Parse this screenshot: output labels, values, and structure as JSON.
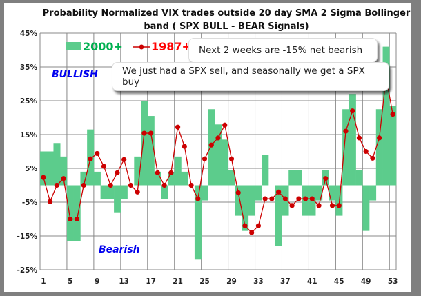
{
  "chart_data": {
    "type": "bar",
    "title": "Probability Normalized VIX trades outside 20 day SMA 2 Sigma Bollinger band ( SPX BULL - BEAR Signals)",
    "title_lines": [
      "Probability Normalized VIX trades outside 20 day SMA 2 Sigma Bollinger",
      "band ( SPX BULL - BEAR Signals)"
    ],
    "xlabel": "",
    "ylabel": "",
    "ylim": [
      -25,
      45
    ],
    "y_ticks": [
      "45%",
      "35%",
      "25%",
      "15%",
      "5%",
      "-5%",
      "-15%",
      "-25%"
    ],
    "y_tick_values": [
      45,
      35,
      25,
      15,
      5,
      -5,
      -15,
      -25
    ],
    "x_ticks": [
      "1",
      "5",
      "9",
      "13",
      "17",
      "21",
      "25",
      "29",
      "33",
      "37",
      "41",
      "45",
      "49",
      "53"
    ],
    "x": [
      1,
      2,
      3,
      4,
      5,
      6,
      7,
      8,
      9,
      10,
      11,
      12,
      13,
      14,
      15,
      16,
      17,
      18,
      19,
      20,
      21,
      22,
      23,
      24,
      25,
      26,
      27,
      28,
      29,
      30,
      31,
      32,
      33,
      34,
      35,
      36,
      37,
      38,
      39,
      40,
      41,
      42,
      43,
      44,
      45,
      46,
      47,
      48,
      49,
      50,
      51,
      52,
      53
    ],
    "grid": true,
    "legend_position": "top-left",
    "series": [
      {
        "name": "2000+",
        "type": "bar",
        "color": "#5ccc8c",
        "values": [
          10,
          10,
          12.5,
          8.5,
          -16.5,
          -16.5,
          4,
          16.5,
          4,
          -4,
          -4,
          -8,
          -4,
          0,
          8.5,
          25,
          20.5,
          4,
          -4,
          4,
          8.5,
          4,
          0,
          -22,
          -4.5,
          22.5,
          18,
          13.5,
          4.5,
          -9,
          -13.5,
          -9,
          -4.5,
          9,
          0,
          -18,
          -9,
          4.5,
          4.5,
          -9,
          -9,
          -4.5,
          4.5,
          -4.5,
          -9,
          22.5,
          27,
          4.5,
          -13.5,
          -4.5,
          22.5,
          41,
          23.5
        ]
      },
      {
        "name": "1987+",
        "type": "line",
        "color": "#cc0000",
        "values": [
          2.3,
          -4.8,
          0,
          2,
          -10,
          -10,
          0,
          7.8,
          9.4,
          5.6,
          0,
          3.7,
          7.6,
          0,
          -2,
          15.4,
          15.4,
          3.7,
          0,
          3.7,
          17.2,
          11.5,
          0,
          -4,
          7.8,
          11.9,
          14,
          17.8,
          7.8,
          -2.2,
          -12,
          -14,
          -12,
          -4,
          -4,
          -2,
          -4,
          -6,
          -4,
          -4,
          -4,
          -6,
          2,
          -6,
          -6,
          16,
          22,
          14,
          10,
          8,
          14,
          32,
          21
        ]
      }
    ],
    "annotations": {
      "bullish": "BULLISH",
      "bearish": "Bearish",
      "callout_1": "Next 2 weeks are -15% net bearish",
      "callout_2": "We just had a SPX sell, and seasonally we get a SPX buy"
    },
    "colors": {
      "bullish": "#0000ee",
      "legend_2000": "#00b050",
      "legend_1987": "#ff0000"
    }
  }
}
